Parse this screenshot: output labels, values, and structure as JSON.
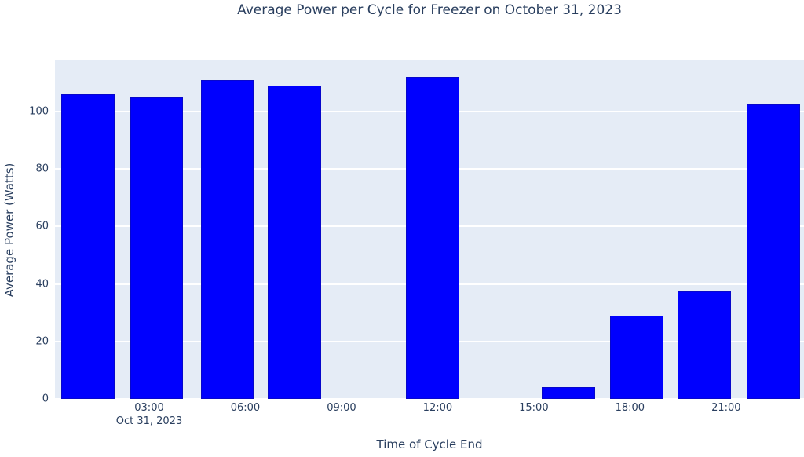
{
  "colors": {
    "bar": "#0000fe",
    "plot_background": "#e5ecf6",
    "paper_background": "#ffffff",
    "text": "#2a3f5f",
    "grid": "#ffffff"
  },
  "chart_data": {
    "type": "bar",
    "title": "Average Power per Cycle for Freezer on October 31, 2023",
    "xlabel": "Time of Cycle End",
    "ylabel": "Average Power (Watts)",
    "x_unit": "hours since midnight, Oct 31 2023",
    "xlim": [
      0.06,
      23.43
    ],
    "ylim": [
      0,
      117.7
    ],
    "bar_width_hours": 1.66,
    "grid": "horizontal-only",
    "legend": "none",
    "x_ticks": [
      {
        "hour": 3,
        "label": "03:00",
        "sublabel": "Oct 31, 2023"
      },
      {
        "hour": 6,
        "label": "06:00",
        "sublabel": ""
      },
      {
        "hour": 9,
        "label": "09:00",
        "sublabel": ""
      },
      {
        "hour": 12,
        "label": "12:00",
        "sublabel": ""
      },
      {
        "hour": 15,
        "label": "15:00",
        "sublabel": ""
      },
      {
        "hour": 18,
        "label": "18:00",
        "sublabel": ""
      },
      {
        "hour": 21,
        "label": "21:00",
        "sublabel": ""
      }
    ],
    "y_ticks": [
      0,
      20,
      40,
      60,
      80,
      100
    ],
    "bars": [
      {
        "time": "01:05",
        "hour": 1.09,
        "value": 106
      },
      {
        "time": "03:14",
        "hour": 3.23,
        "value": 105
      },
      {
        "time": "05:26",
        "hour": 5.44,
        "value": 111
      },
      {
        "time": "07:32",
        "hour": 7.53,
        "value": 109
      },
      {
        "time": "11:51",
        "hour": 11.85,
        "value": 112
      },
      {
        "time": "16:05",
        "hour": 16.08,
        "value": 4
      },
      {
        "time": "18:13",
        "hour": 18.22,
        "value": 29
      },
      {
        "time": "20:19",
        "hour": 20.32,
        "value": 37.5
      },
      {
        "time": "22:29",
        "hour": 22.48,
        "value": 102.5
      }
    ]
  }
}
